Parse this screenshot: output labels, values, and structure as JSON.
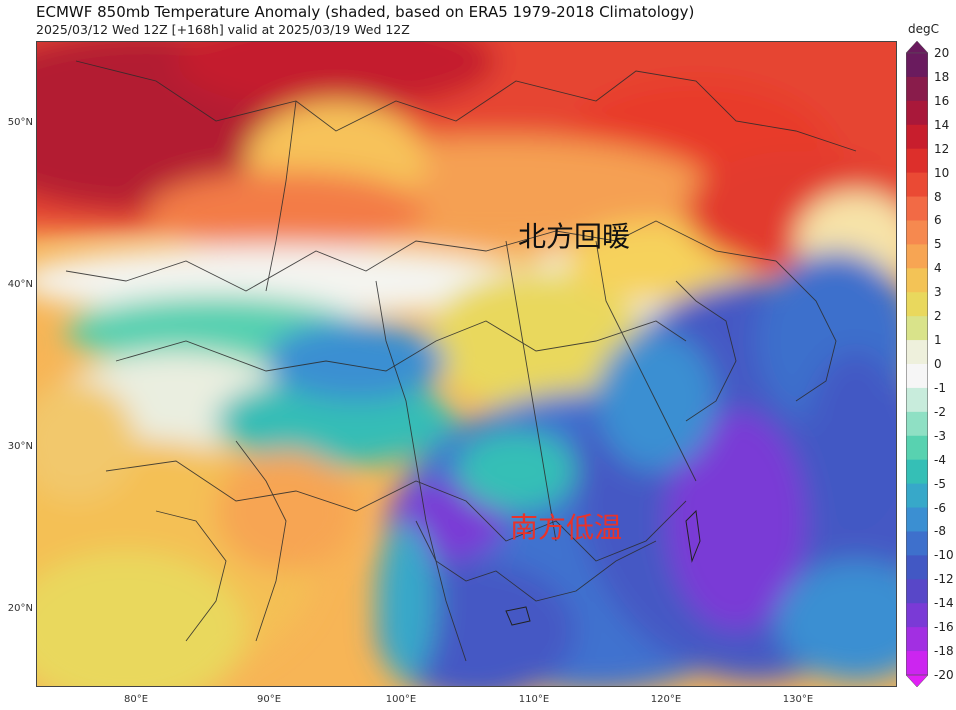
{
  "title": "ECMWF 850mb Temperature Anomaly (shaded, based on ERA5 1979-2018 Climatology)",
  "subtitle": "2025/03/12 Wed 12Z [+168h] valid at 2025/03/19 Wed 12Z",
  "colorbar": {
    "unit": "degC",
    "ticks": [
      "20",
      "18",
      "16",
      "14",
      "12",
      "10",
      "8",
      "6",
      "5",
      "4",
      "3",
      "2",
      "1",
      "0",
      "-1",
      "-2",
      "-3",
      "-4",
      "-5",
      "-6",
      "-8",
      "-10",
      "-12",
      "-14",
      "-16",
      "-18",
      "-20"
    ],
    "colors": [
      "#6a1b5e",
      "#891c4b",
      "#a9183a",
      "#c81e2d",
      "#dd2f2b",
      "#ea4a34",
      "#f26a45",
      "#f6894f",
      "#f7a553",
      "#f3c356",
      "#e9d85d",
      "#d9e38a",
      "#eef0dc",
      "#f6f6f6",
      "#c8ecdc",
      "#8fe0c4",
      "#58d2b0",
      "#35bfb6",
      "#37a8c9",
      "#3b8fd2",
      "#3e70cc",
      "#4258c4",
      "#5847c8",
      "#7a3ad6",
      "#a22fe2",
      "#cc25f0"
    ]
  },
  "axes": {
    "lat_labels": [
      "50°N",
      "40°N",
      "30°N",
      "20°N"
    ],
    "lon_labels": [
      "80°E",
      "90°E",
      "100°E",
      "110°E",
      "120°E",
      "130°E"
    ]
  },
  "annotations": {
    "north": "北方回暖",
    "south": "南方低温"
  },
  "colors": {
    "north_text": "#111111",
    "south_text": "#e8332a"
  }
}
